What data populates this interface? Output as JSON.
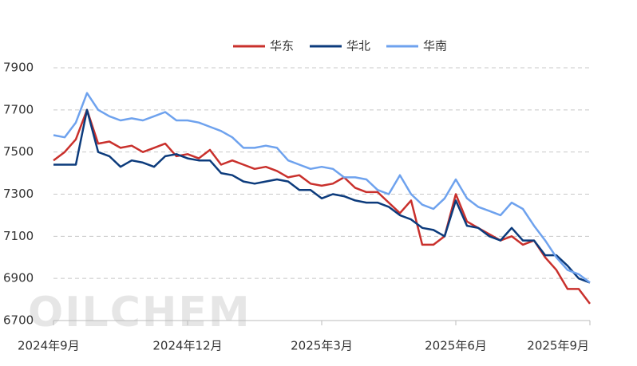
{
  "chart_data": {
    "type": "line",
    "watermark": "OILCHEM",
    "categories": [
      "2024年9月",
      null,
      null,
      null,
      null,
      null,
      null,
      null,
      null,
      null,
      null,
      null,
      "2024年12月",
      null,
      null,
      null,
      null,
      null,
      null,
      null,
      null,
      null,
      null,
      null,
      "2025年3月",
      null,
      null,
      null,
      null,
      null,
      null,
      null,
      null,
      null,
      null,
      null,
      "2025年6月",
      null,
      null,
      null,
      null,
      null,
      null,
      null,
      null,
      null,
      null,
      null,
      "2025年9月"
    ],
    "series": [
      {
        "name": "华东",
        "color": "#c9302c",
        "values": [
          7460,
          7500,
          7560,
          7700,
          7540,
          7550,
          7520,
          7530,
          7500,
          7520,
          7540,
          7480,
          7490,
          7470,
          7510,
          7440,
          7460,
          7440,
          7420,
          7430,
          7410,
          7380,
          7390,
          7350,
          7340,
          7350,
          7380,
          7330,
          7310,
          7310,
          7260,
          7210,
          7270,
          7060,
          7060,
          7100,
          7300,
          7170,
          7140,
          7110,
          7080,
          7100,
          7060,
          7080,
          7000,
          6940,
          6850,
          6850,
          6780
        ]
      },
      {
        "name": "华北",
        "color": "#0c3b7c",
        "values": [
          7440,
          7440,
          7440,
          7700,
          7500,
          7480,
          7430,
          7460,
          7450,
          7430,
          7480,
          7490,
          7470,
          7460,
          7460,
          7400,
          7390,
          7360,
          7350,
          7360,
          7370,
          7360,
          7320,
          7320,
          7280,
          7300,
          7290,
          7270,
          7260,
          7260,
          7240,
          7200,
          7180,
          7140,
          7130,
          7100,
          7270,
          7150,
          7140,
          7100,
          7080,
          7140,
          7080,
          7080,
          7010,
          7010,
          6960,
          6900,
          6880
        ]
      },
      {
        "name": "华南",
        "color": "#6ea2ee",
        "values": [
          7580,
          7570,
          7640,
          7780,
          7700,
          7670,
          7650,
          7660,
          7650,
          7670,
          7690,
          7650,
          7650,
          7640,
          7620,
          7600,
          7570,
          7520,
          7520,
          7530,
          7520,
          7460,
          7440,
          7420,
          7430,
          7420,
          7380,
          7380,
          7370,
          7320,
          7300,
          7390,
          7300,
          7250,
          7230,
          7280,
          7370,
          7280,
          7240,
          7220,
          7200,
          7260,
          7230,
          7150,
          7080,
          7000,
          6940,
          6920,
          6880
        ]
      }
    ],
    "ylim": [
      6700,
      7900
    ],
    "yticks": [
      6700,
      6900,
      7100,
      7300,
      7500,
      7700,
      7900
    ],
    "grid": true
  }
}
